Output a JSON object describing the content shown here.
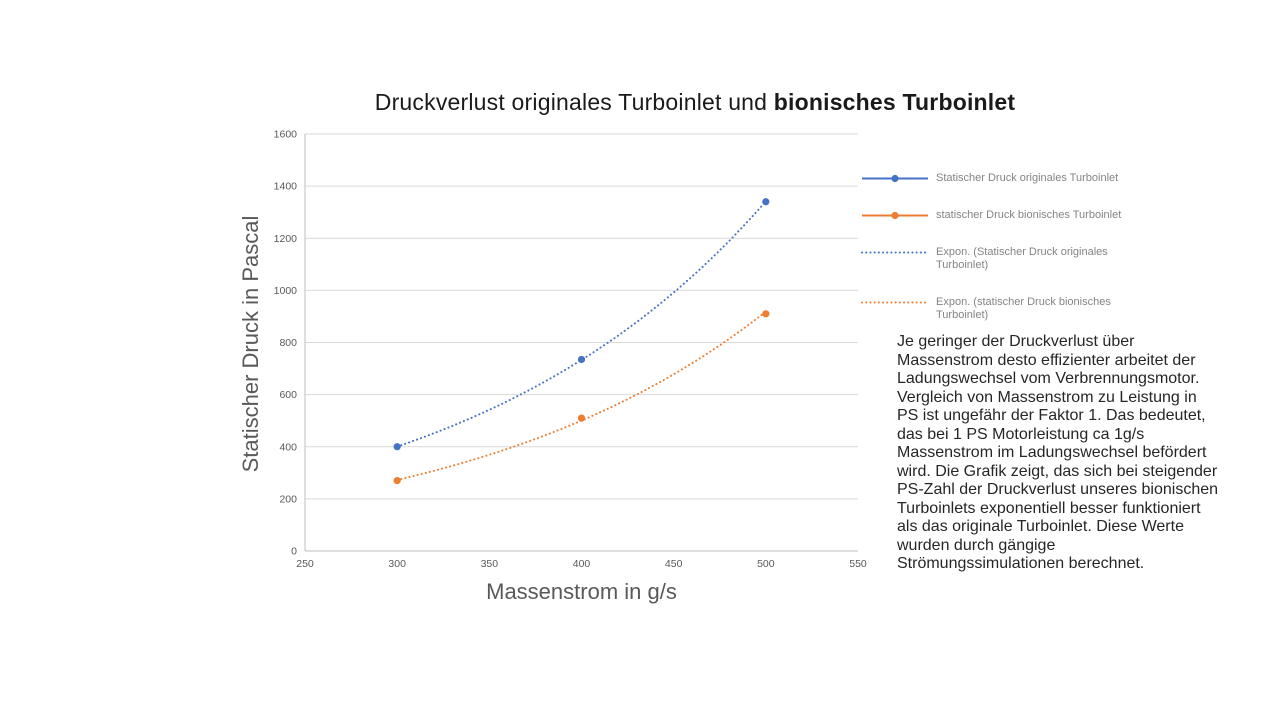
{
  "title": {
    "normal": "Druckverlust originales Turboinlet und ",
    "bold": "bionisches Turboinlet"
  },
  "colors": {
    "series1": "#4472C4",
    "series2": "#ED7D31",
    "grid": "#D9D9D9",
    "axis_line": "#BFBFBF",
    "tick_text": "#595959",
    "axis_title_text": "#595959",
    "legend_text": "#848484",
    "body_text": "#262626",
    "title_text": "#1a1a1a"
  },
  "chart_data": {
    "type": "scatter",
    "title": "Druckverlust originales Turboinlet und bionisches Turboinlet",
    "xlabel": "Massenstrom in g/s",
    "ylabel": "Statischer Druck in Pascal",
    "xlim": [
      250,
      550
    ],
    "ylim": [
      0,
      1600
    ],
    "x_ticks": [
      250,
      300,
      350,
      400,
      450,
      500,
      550
    ],
    "y_ticks": [
      0,
      200,
      400,
      600,
      800,
      1000,
      1200,
      1400,
      1600
    ],
    "grid": "horizontal",
    "legend_position": "right",
    "x": [
      300,
      400,
      500
    ],
    "series": [
      {
        "name": "Statischer Druck originales Turboinlet",
        "color_key": "series1",
        "values": [
          400,
          735,
          1340
        ],
        "trendline": "exponential"
      },
      {
        "name": "statischer Druck bionisches Turboinlet",
        "color_key": "series2",
        "values": [
          270,
          510,
          910
        ],
        "trendline": "exponential"
      }
    ],
    "legend": [
      {
        "label": "Statischer Druck originales Turboinlet",
        "swatch": "line-marker",
        "color_key": "series1"
      },
      {
        "label": "statischer Druck bionisches Turboinlet",
        "swatch": "line-marker",
        "color_key": "series2"
      },
      {
        "label": "Expon. (Statischer Druck originales Turboinlet)",
        "swatch": "dotted-line",
        "color_key": "series1"
      },
      {
        "label": "Expon. (statischer Druck bionisches Turboinlet)",
        "swatch": "dotted-line",
        "color_key": "series2"
      }
    ]
  },
  "sidebar_text": "Je geringer der Druckverlust über Massenstrom desto effizienter arbeitet der Ladungswechsel vom Verbrennungsmotor. Vergleich von Massenstrom zu Leistung in PS ist ungefähr der Faktor 1. Das bedeutet, das bei 1 PS Motorleistung ca 1g/s Massenstrom im Ladungswechsel befördert wird. Die Grafik zeigt, das sich bei steigender PS-Zahl der Druckverlust unseres bionischen Turboinlets exponentiell besser funktioniert als das originale Turboinlet. Diese Werte wurden durch gängige Strömungssimulationen berechnet."
}
